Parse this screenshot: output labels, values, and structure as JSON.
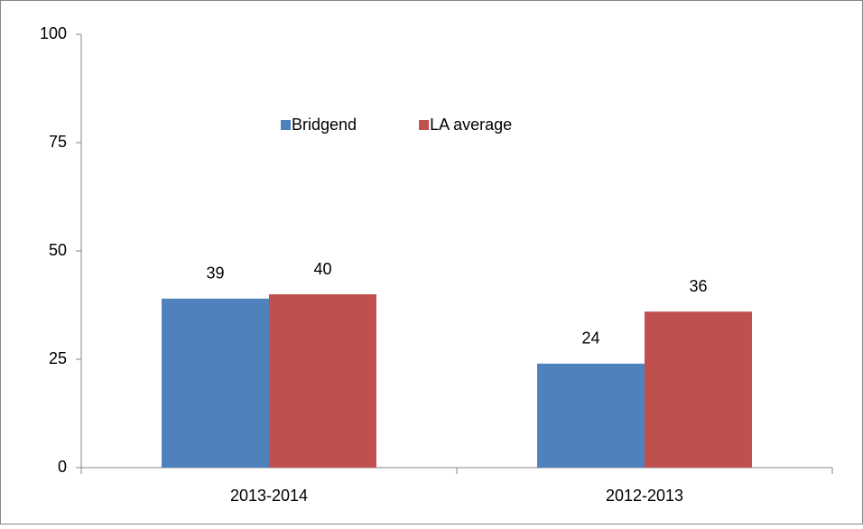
{
  "chart_data": {
    "type": "bar",
    "categories": [
      "2013-2014",
      "2012-2013"
    ],
    "series": [
      {
        "name": "Bridgend",
        "color": "#4f81bd",
        "values": [
          39,
          24
        ]
      },
      {
        "name": "LA average",
        "color": "#c0504d",
        "values": [
          40,
          36
        ]
      }
    ],
    "ylim": [
      0,
      100
    ],
    "yticks": [
      0,
      25,
      50,
      75,
      100
    ],
    "grid": false,
    "legend": "top",
    "data_labels": true
  }
}
